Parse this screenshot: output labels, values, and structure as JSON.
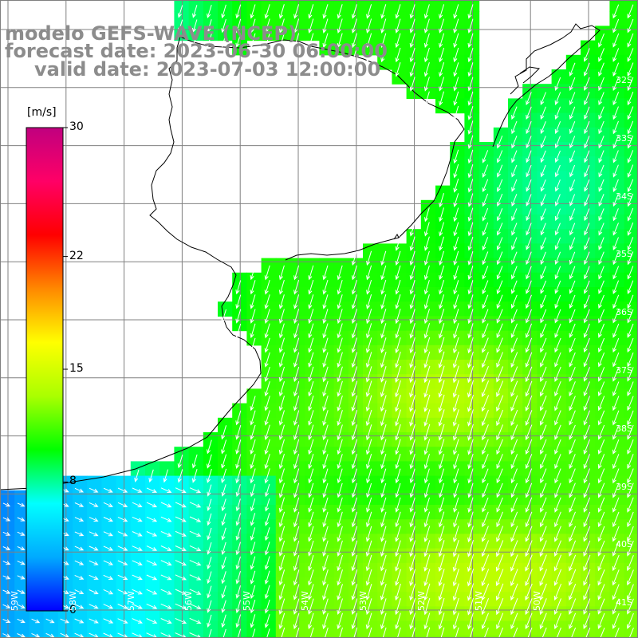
{
  "title": {
    "line1": "modelo GEFS-WAVE (NCEP)",
    "line2": "forecast date: 2023-06-30 06:00:00",
    "line3": "valid date: 2023-07-03 12:00:00"
  },
  "colorbar": {
    "unit": "[m/s]",
    "ticks": [
      "30",
      "22",
      "15",
      "8",
      "0"
    ],
    "tick_values": [
      30,
      22,
      15,
      8,
      0
    ],
    "range": [
      0,
      30
    ],
    "colors": [
      "#0000ff",
      "#00aaff",
      "#00ffff",
      "#00ff00",
      "#aaff00",
      "#ffff00",
      "#ff8800",
      "#ff0000",
      "#ff0066",
      "#c0007f"
    ]
  },
  "map": {
    "land_color": "#ffffff",
    "grid_color": "#808080",
    "coast_color": "#000000",
    "arrow_color": "#ffffff",
    "lat_labels": [
      "32S",
      "33S",
      "34S",
      "35S",
      "36S",
      "37S",
      "38S",
      "39S",
      "40S",
      "41S"
    ],
    "lon_labels": [
      "59W",
      "58W",
      "57W",
      "56W",
      "55W",
      "54W",
      "53W",
      "52W",
      "51W",
      "50W"
    ]
  }
}
